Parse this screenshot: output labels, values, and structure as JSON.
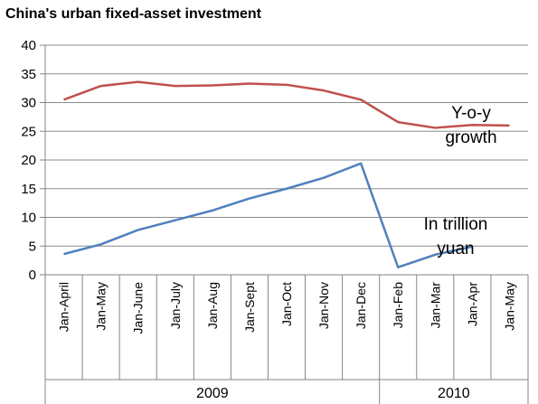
{
  "chart_data": {
    "type": "line",
    "title": "China's urban fixed-asset investment",
    "categories": [
      "Jan-April",
      "Jan-May",
      "Jan-June",
      "Jan-July",
      "Jan-Aug",
      "Jan-Sept",
      "Jan-Oct",
      "Jan-Nov",
      "Jan-Dec",
      "Jan-Feb",
      "Jan-Mar",
      "Jan-Apr",
      "Jan-May"
    ],
    "groups": [
      {
        "label": "2009",
        "from": 0,
        "to": 8
      },
      {
        "label": "2010",
        "from": 9,
        "to": 12
      }
    ],
    "ylim": [
      0,
      40
    ],
    "yticks": [
      0,
      5,
      10,
      15,
      20,
      25,
      30,
      35,
      40
    ],
    "grid": true,
    "series": [
      {
        "name": "Y-o-y growth",
        "color": "#c0504d",
        "values": [
          30.5,
          32.9,
          33.6,
          32.9,
          33.0,
          33.3,
          33.1,
          32.1,
          30.5,
          26.6,
          25.6,
          26.1,
          26.0
        ]
      },
      {
        "name": "In trillion yuan",
        "color": "#4f81bd",
        "values": [
          3.6,
          5.3,
          7.8,
          9.5,
          11.2,
          13.3,
          15.0,
          16.9,
          19.4,
          1.3,
          3.5,
          4.9,
          null
        ]
      }
    ],
    "annotations": [
      {
        "series": 0,
        "lines": [
          "Y-o-y",
          "growth"
        ]
      },
      {
        "series": 1,
        "lines": [
          "In trillion",
          "yuan"
        ]
      }
    ]
  }
}
